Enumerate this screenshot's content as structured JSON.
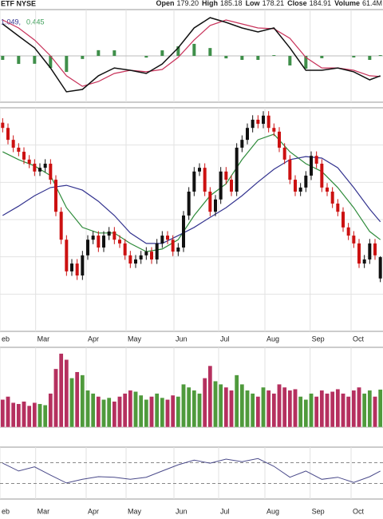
{
  "header": {
    "symbol": "ETF NYSE",
    "quote": [
      {
        "label": "Open",
        "value": "179.20"
      },
      {
        "label": "High",
        "value": "185.18"
      },
      {
        "label": "Low",
        "value": "178.21"
      },
      {
        "label": "Close",
        "value": "184.91"
      },
      {
        "label": "Volume",
        "value": "61.4M"
      }
    ]
  },
  "chart_data": [
    {
      "type": "macd",
      "legend": [
        "1.049,",
        "0.445"
      ],
      "xlim": [
        -0.5,
        71.5
      ],
      "ylim": [
        -3,
        3
      ],
      "x": [
        0,
        3,
        6,
        9,
        12,
        15,
        18,
        21,
        24,
        27,
        30,
        33,
        36,
        39,
        42,
        45,
        48,
        51,
        54,
        57,
        60,
        63,
        66,
        69,
        71
      ],
      "macd": {
        "color": "#111111",
        "values": [
          2.07,
          1.29,
          0.52,
          -0.78,
          -2.33,
          -2.17,
          -1.29,
          -0.78,
          -0.93,
          -1.14,
          -0.52,
          0.52,
          1.81,
          2.48,
          2.17,
          1.81,
          1.55,
          1.81,
          0.52,
          -0.93,
          -0.93,
          -0.78,
          -1.03,
          -1.55,
          -1.29
        ]
      },
      "signal": {
        "color": "#c8325a",
        "values": [
          2.33,
          1.81,
          1.03,
          0,
          -1.29,
          -1.97,
          -1.66,
          -1.14,
          -0.93,
          -1.03,
          -0.88,
          -0.1,
          1.03,
          1.97,
          2.33,
          2.07,
          1.81,
          1.76,
          1.14,
          -0.1,
          -0.78,
          -0.78,
          -0.93,
          -1.29,
          -1.34
        ]
      },
      "histogram": {
        "color": "#3f8f4a",
        "values": [
          -0.26,
          -0.52,
          -0.51,
          -0.78,
          -1.04,
          -0.2,
          0.37,
          0.36,
          0,
          -0.11,
          0.36,
          0.62,
          0.78,
          0.51,
          -0.16,
          -0.26,
          -0.26,
          0.05,
          -0.62,
          -0.83,
          -0.15,
          0,
          -0.1,
          -0.26,
          0.05
        ]
      }
    },
    {
      "type": "candlestick",
      "xlim": [
        -0.5,
        71.5
      ],
      "ylim": [
        165,
        225
      ],
      "yticks": [
        175,
        185,
        195,
        205,
        215
      ],
      "grid": true,
      "up_color": "#111111",
      "down_color": "#cc1111",
      "xticks": [
        {
          "value": -0.5,
          "label": "eb"
        },
        {
          "value": 6.2,
          "label": "Mar"
        },
        {
          "value": 15.7,
          "label": "Apr"
        },
        {
          "value": 23.2,
          "label": "May"
        },
        {
          "value": 32.2,
          "label": "Jun"
        },
        {
          "value": 40.6,
          "label": "Jul"
        },
        {
          "value": 49.3,
          "label": "Aug"
        },
        {
          "value": 57.8,
          "label": "Sep"
        },
        {
          "value": 65.5,
          "label": "Oct"
        }
      ],
      "ohlc": [
        [
          221.0,
          222.2,
          218.4,
          219.6
        ],
        [
          219.6,
          220.8,
          215.2,
          216.4
        ],
        [
          216.4,
          217.6,
          213.1,
          214.3
        ],
        [
          214.3,
          215.5,
          212.0,
          213.2
        ],
        [
          213.2,
          214.4,
          209.9,
          211.1
        ],
        [
          211.1,
          212.3,
          208.8,
          210.0
        ],
        [
          210.0,
          211.2,
          206.7,
          207.9
        ],
        [
          207.9,
          210.1,
          206.7,
          208.9
        ],
        [
          208.9,
          211.2,
          207.7,
          210.0
        ],
        [
          210.0,
          211.2,
          204.5,
          205.7
        ],
        [
          205.7,
          206.9,
          195.9,
          197.1
        ],
        [
          197.1,
          198.3,
          188.4,
          189.6
        ],
        [
          189.6,
          190.8,
          179.9,
          181.1
        ],
        [
          181.1,
          184.4,
          179.9,
          183.2
        ],
        [
          183.2,
          184.4,
          178.8,
          180.0
        ],
        [
          180.0,
          186.6,
          178.8,
          185.4
        ],
        [
          185.4,
          190.8,
          184.2,
          189.6
        ],
        [
          189.6,
          191.9,
          188.4,
          190.7
        ],
        [
          190.7,
          191.9,
          186.3,
          187.5
        ],
        [
          187.5,
          191.9,
          186.3,
          190.7
        ],
        [
          190.7,
          193.0,
          189.5,
          191.8
        ],
        [
          191.8,
          193.0,
          188.4,
          189.6
        ],
        [
          189.6,
          190.8,
          187.4,
          188.6
        ],
        [
          188.6,
          189.8,
          184.2,
          185.4
        ],
        [
          185.4,
          186.6,
          182.0,
          183.2
        ],
        [
          183.2,
          185.5,
          182.0,
          184.3
        ],
        [
          184.3,
          186.6,
          183.1,
          185.4
        ],
        [
          185.4,
          187.6,
          184.2,
          186.4
        ],
        [
          186.4,
          187.6,
          183.1,
          184.3
        ],
        [
          184.3,
          189.8,
          183.1,
          188.6
        ],
        [
          188.6,
          191.9,
          187.4,
          190.7
        ],
        [
          190.7,
          191.9,
          188.4,
          189.6
        ],
        [
          189.6,
          190.8,
          185.2,
          186.4
        ],
        [
          186.4,
          188.7,
          185.2,
          187.5
        ],
        [
          187.5,
          197.3,
          186.3,
          196.1
        ],
        [
          196.1,
          203.7,
          194.9,
          202.5
        ],
        [
          202.5,
          209.1,
          201.3,
          207.9
        ],
        [
          207.9,
          210.1,
          206.7,
          208.9
        ],
        [
          208.9,
          210.1,
          201.3,
          202.5
        ],
        [
          202.5,
          203.7,
          195.9,
          197.1
        ],
        [
          197.1,
          201.6,
          195.9,
          200.4
        ],
        [
          200.4,
          209.1,
          199.2,
          207.9
        ],
        [
          207.9,
          209.1,
          204.5,
          205.7
        ],
        [
          205.7,
          206.9,
          201.3,
          202.5
        ],
        [
          202.5,
          215.5,
          201.3,
          214.3
        ],
        [
          214.3,
          217.6,
          213.1,
          216.4
        ],
        [
          216.4,
          220.8,
          215.2,
          219.6
        ],
        [
          219.6,
          223.0,
          218.4,
          221.8
        ],
        [
          221.8,
          223.0,
          219.5,
          220.7
        ],
        [
          220.7,
          224.1,
          219.5,
          222.9
        ],
        [
          222.9,
          224.1,
          218.4,
          219.6
        ],
        [
          219.6,
          220.8,
          217.4,
          218.6
        ],
        [
          218.6,
          219.8,
          213.1,
          214.3
        ],
        [
          214.3,
          215.5,
          209.9,
          211.1
        ],
        [
          211.1,
          212.3,
          204.5,
          205.7
        ],
        [
          205.7,
          206.9,
          201.3,
          202.5
        ],
        [
          202.5,
          204.8,
          201.3,
          203.6
        ],
        [
          203.6,
          208.0,
          202.4,
          206.8
        ],
        [
          206.8,
          213.3,
          205.6,
          212.1
        ],
        [
          212.1,
          213.3,
          208.8,
          210.0
        ],
        [
          210.0,
          211.2,
          202.4,
          203.6
        ],
        [
          203.6,
          204.8,
          201.3,
          202.5
        ],
        [
          202.5,
          203.7,
          198.1,
          199.3
        ],
        [
          199.3,
          200.5,
          195.9,
          197.1
        ],
        [
          197.1,
          198.3,
          191.7,
          192.9
        ],
        [
          192.9,
          194.1,
          189.5,
          190.7
        ],
        [
          190.7,
          191.9,
          187.4,
          188.6
        ],
        [
          188.6,
          189.8,
          182.0,
          183.2
        ],
        [
          183.2,
          185.5,
          182.0,
          184.3
        ],
        [
          184.3,
          189.8,
          183.1,
          188.6
        ],
        [
          188.6,
          189.8,
          184.2,
          185.4
        ],
        [
          179.2,
          185.18,
          178.21,
          184.91
        ]
      ],
      "x": [
        0,
        3,
        6,
        9,
        12,
        15,
        18,
        21,
        24,
        27,
        30,
        33,
        36,
        39,
        42,
        45,
        48,
        51,
        54,
        57,
        60,
        63,
        66,
        69,
        71
      ],
      "series": [
        {
          "color": "#2e8b3a",
          "values": [
            213.2,
            211.1,
            209.4,
            206.8,
            198.2,
            192.9,
            191.4,
            191.4,
            188.6,
            186.4,
            187.1,
            189.6,
            196.1,
            201.4,
            204.6,
            211.1,
            216.4,
            217.9,
            213.2,
            210.0,
            207.9,
            203.6,
            198.2,
            191.8,
            189.6
          ]
        },
        {
          "color": "#33338f",
          "values": [
            196.1,
            198.6,
            201.4,
            203.6,
            204.2,
            202.9,
            199.9,
            196.1,
            191.4,
            188.6,
            188.6,
            190.7,
            192.9,
            195.6,
            198.2,
            201.4,
            205.1,
            208.5,
            211.1,
            211.9,
            211.5,
            208.9,
            203.6,
            197.8,
            194.4
          ]
        }
      ]
    },
    {
      "type": "volume",
      "xlim": [
        -0.5,
        71.5
      ],
      "ylim": [
        0,
        130
      ],
      "up_color": "#4f9a3c",
      "down_color": "#b5305f",
      "values": [
        45,
        50,
        40,
        38,
        42,
        35,
        40,
        38,
        36,
        55,
        95,
        120,
        110,
        80,
        90,
        85,
        60,
        55,
        50,
        45,
        48,
        42,
        50,
        55,
        60,
        58,
        52,
        45,
        50,
        55,
        48,
        45,
        52,
        50,
        70,
        65,
        60,
        55,
        80,
        100,
        75,
        70,
        65,
        60,
        85,
        70,
        60,
        55,
        50,
        65,
        60,
        55,
        70,
        65,
        60,
        62,
        50,
        45,
        55,
        50,
        60,
        55,
        58,
        62,
        55,
        50,
        60,
        65,
        55,
        60,
        50,
        61.4
      ]
    },
    {
      "type": "line",
      "xlim": [
        -0.5,
        71.5
      ],
      "ylim": [
        0,
        100
      ],
      "yticks": [
        30,
        70
      ],
      "color": "#4a4a8a",
      "x": [
        0,
        3,
        6,
        9,
        12,
        15,
        18,
        21,
        24,
        27,
        30,
        33,
        36,
        39,
        42,
        45,
        48,
        51,
        54,
        57,
        60,
        63,
        66,
        69,
        71
      ],
      "values": [
        69,
        54,
        62,
        46,
        31,
        38,
        43,
        42,
        38,
        42,
        54,
        66,
        75,
        69,
        77,
        72,
        78,
        63,
        42,
        54,
        38,
        42,
        32,
        43,
        54
      ]
    }
  ]
}
